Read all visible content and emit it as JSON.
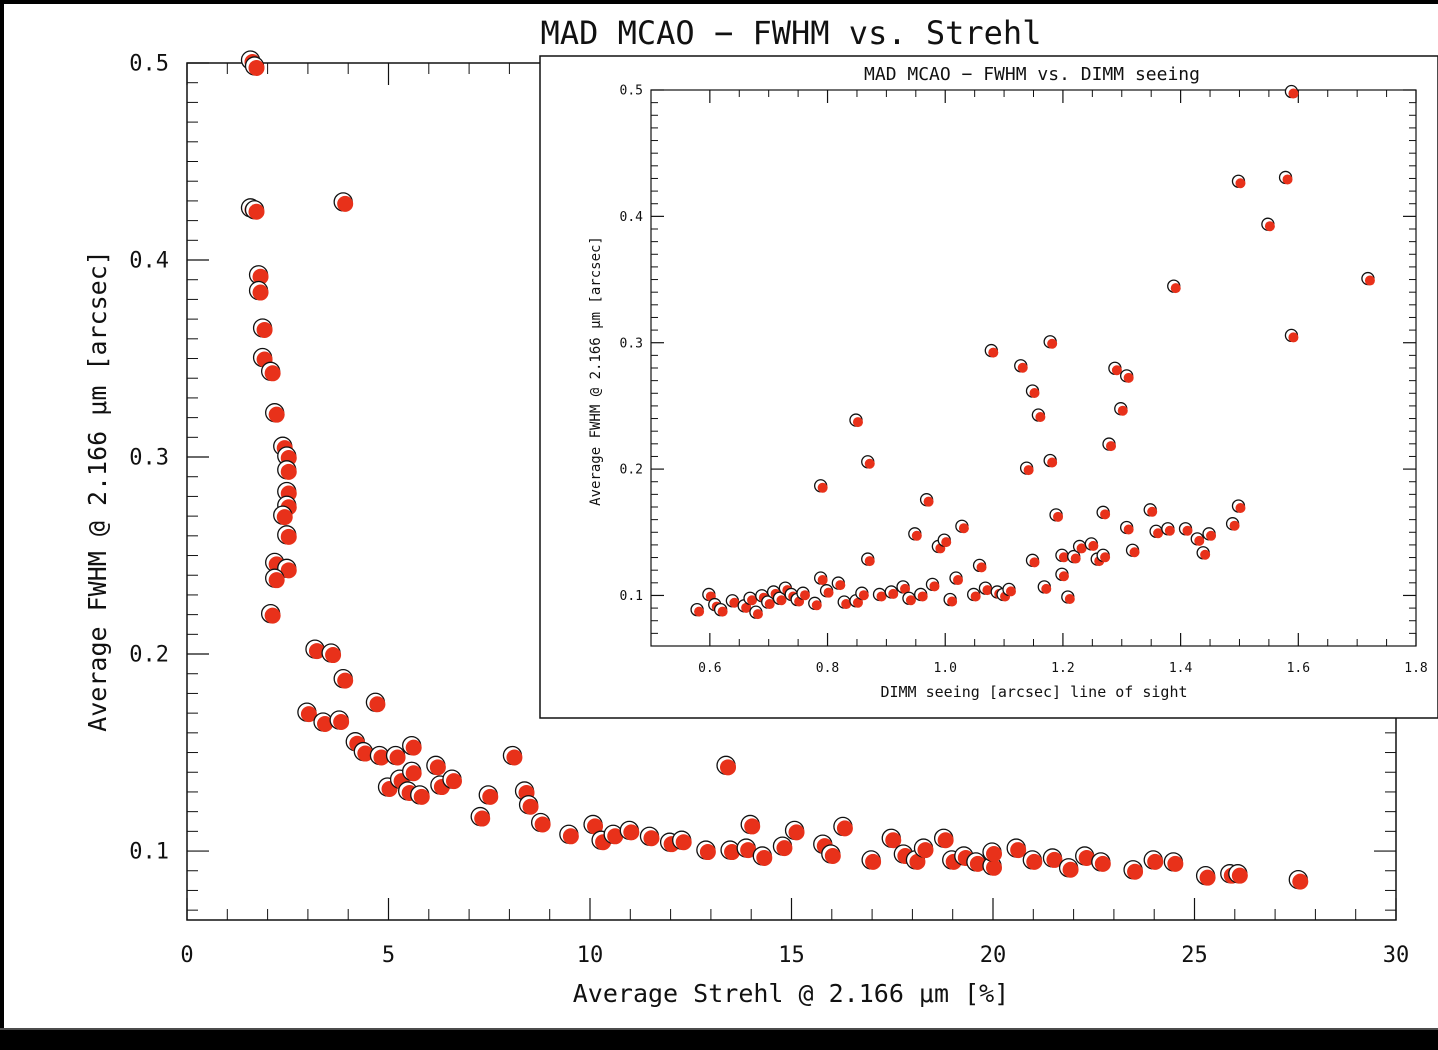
{
  "chart_data": [
    {
      "type": "scatter",
      "title": "MAD MCAO − FWHM vs. Strehl",
      "xlabel": "Average Strehl @ 2.166 μm [%]",
      "ylabel": "Average FWHM @ 2.166 μm [arcsec]",
      "xlim": [
        0,
        30
      ],
      "ylim": [
        0.065,
        0.5
      ],
      "xticks": [
        "0",
        "5",
        "10",
        "15",
        "20",
        "25",
        "30"
      ],
      "yticks": [
        "0.1",
        "0.2",
        "0.3",
        "0.4",
        "0.5"
      ],
      "grid": false,
      "marker_color": "#e8311a",
      "points": [
        [
          1.6,
          0.501
        ],
        [
          1.7,
          0.498
        ],
        [
          1.6,
          0.426
        ],
        [
          1.7,
          0.425
        ],
        [
          3.9,
          0.429
        ],
        [
          1.8,
          0.392
        ],
        [
          1.8,
          0.384
        ],
        [
          1.9,
          0.365
        ],
        [
          1.9,
          0.35
        ],
        [
          2.1,
          0.343
        ],
        [
          2.2,
          0.322
        ],
        [
          2.4,
          0.305
        ],
        [
          2.5,
          0.3
        ],
        [
          2.5,
          0.293
        ],
        [
          2.5,
          0.282
        ],
        [
          2.5,
          0.275
        ],
        [
          2.4,
          0.27
        ],
        [
          2.5,
          0.26
        ],
        [
          2.2,
          0.246
        ],
        [
          2.5,
          0.243
        ],
        [
          2.2,
          0.238
        ],
        [
          2.1,
          0.22
        ],
        [
          3.2,
          0.202
        ],
        [
          3.6,
          0.2
        ],
        [
          3.9,
          0.187
        ],
        [
          3.0,
          0.17
        ],
        [
          3.4,
          0.165
        ],
        [
          3.8,
          0.166
        ],
        [
          4.2,
          0.155
        ],
        [
          4.4,
          0.15
        ],
        [
          4.7,
          0.175
        ],
        [
          4.8,
          0.148
        ],
        [
          5.2,
          0.148
        ],
        [
          5.0,
          0.132
        ],
        [
          5.3,
          0.136
        ],
        [
          5.6,
          0.14
        ],
        [
          5.6,
          0.153
        ],
        [
          5.5,
          0.13
        ],
        [
          5.8,
          0.128
        ],
        [
          6.2,
          0.143
        ],
        [
          6.3,
          0.133
        ],
        [
          6.6,
          0.136
        ],
        [
          7.3,
          0.117
        ],
        [
          7.5,
          0.128
        ],
        [
          8.1,
          0.148
        ],
        [
          8.4,
          0.13
        ],
        [
          8.5,
          0.123
        ],
        [
          8.8,
          0.114
        ],
        [
          9.5,
          0.108
        ],
        [
          10.1,
          0.113
        ],
        [
          10.3,
          0.105
        ],
        [
          10.6,
          0.108
        ],
        [
          11.0,
          0.11
        ],
        [
          11.5,
          0.107
        ],
        [
          12.0,
          0.104
        ],
        [
          12.3,
          0.105
        ],
        [
          12.9,
          0.1
        ],
        [
          13.4,
          0.143
        ],
        [
          13.5,
          0.1
        ],
        [
          13.9,
          0.101
        ],
        [
          14.0,
          0.113
        ],
        [
          14.3,
          0.097
        ],
        [
          14.8,
          0.102
        ],
        [
          15.1,
          0.11
        ],
        [
          15.8,
          0.103
        ],
        [
          16.0,
          0.098
        ],
        [
          16.3,
          0.112
        ],
        [
          17.0,
          0.095
        ],
        [
          17.5,
          0.106
        ],
        [
          17.8,
          0.098
        ],
        [
          18.1,
          0.095
        ],
        [
          18.3,
          0.101
        ],
        [
          18.8,
          0.106
        ],
        [
          19.0,
          0.095
        ],
        [
          19.3,
          0.097
        ],
        [
          19.6,
          0.094
        ],
        [
          20.0,
          0.092
        ],
        [
          20.0,
          0.099
        ],
        [
          20.6,
          0.101
        ],
        [
          21.0,
          0.095
        ],
        [
          21.5,
          0.096
        ],
        [
          21.9,
          0.091
        ],
        [
          22.3,
          0.097
        ],
        [
          22.7,
          0.094
        ],
        [
          23.5,
          0.09
        ],
        [
          24.0,
          0.095
        ],
        [
          24.5,
          0.094
        ],
        [
          25.3,
          0.087
        ],
        [
          25.9,
          0.088
        ],
        [
          26.1,
          0.088
        ],
        [
          27.6,
          0.085
        ]
      ]
    },
    {
      "type": "scatter",
      "title": "MAD MCAO − FWHM vs. DIMM seeing",
      "xlabel": "DIMM seeing [arcsec] line of sight",
      "ylabel": "Average FWHM @ 2.166 μm [arcsec]",
      "xlim": [
        0.5,
        1.8
      ],
      "ylim": [
        0.06,
        0.5
      ],
      "xticks": [
        "0.6",
        "0.8",
        "1.0",
        "1.2",
        "1.4",
        "1.6",
        "1.8"
      ],
      "yticks": [
        "0.1",
        "0.2",
        "0.3",
        "0.4",
        "0.5"
      ],
      "grid": false,
      "marker_color": "#e8311a",
      "points": [
        [
          0.58,
          0.088
        ],
        [
          0.6,
          0.1
        ],
        [
          0.61,
          0.092
        ],
        [
          0.62,
          0.088
        ],
        [
          0.64,
          0.095
        ],
        [
          0.66,
          0.091
        ],
        [
          0.67,
          0.097
        ],
        [
          0.68,
          0.086
        ],
        [
          0.69,
          0.099
        ],
        [
          0.7,
          0.094
        ],
        [
          0.71,
          0.102
        ],
        [
          0.72,
          0.097
        ],
        [
          0.73,
          0.105
        ],
        [
          0.74,
          0.1
        ],
        [
          0.75,
          0.096
        ],
        [
          0.76,
          0.101
        ],
        [
          0.78,
          0.093
        ],
        [
          0.79,
          0.113
        ],
        [
          0.79,
          0.186
        ],
        [
          0.8,
          0.103
        ],
        [
          0.82,
          0.109
        ],
        [
          0.83,
          0.094
        ],
        [
          0.85,
          0.238
        ],
        [
          0.85,
          0.095
        ],
        [
          0.86,
          0.101
        ],
        [
          0.87,
          0.128
        ],
        [
          0.87,
          0.205
        ],
        [
          0.89,
          0.1
        ],
        [
          0.91,
          0.102
        ],
        [
          0.93,
          0.106
        ],
        [
          0.94,
          0.097
        ],
        [
          0.95,
          0.148
        ],
        [
          0.96,
          0.1
        ],
        [
          0.97,
          0.175
        ],
        [
          0.98,
          0.108
        ],
        [
          0.99,
          0.138
        ],
        [
          1.0,
          0.143
        ],
        [
          1.01,
          0.096
        ],
        [
          1.02,
          0.113
        ],
        [
          1.03,
          0.154
        ],
        [
          1.05,
          0.1
        ],
        [
          1.06,
          0.123
        ],
        [
          1.07,
          0.105
        ],
        [
          1.08,
          0.293
        ],
        [
          1.09,
          0.102
        ],
        [
          1.1,
          0.1
        ],
        [
          1.11,
          0.104
        ],
        [
          1.13,
          0.281
        ],
        [
          1.14,
          0.2
        ],
        [
          1.15,
          0.261
        ],
        [
          1.15,
          0.127
        ],
        [
          1.16,
          0.242
        ],
        [
          1.17,
          0.106
        ],
        [
          1.18,
          0.3
        ],
        [
          1.18,
          0.206
        ],
        [
          1.19,
          0.163
        ],
        [
          1.2,
          0.131
        ],
        [
          1.2,
          0.116
        ],
        [
          1.21,
          0.098
        ],
        [
          1.22,
          0.13
        ],
        [
          1.23,
          0.138
        ],
        [
          1.25,
          0.14
        ],
        [
          1.26,
          0.128
        ],
        [
          1.27,
          0.165
        ],
        [
          1.27,
          0.131
        ],
        [
          1.28,
          0.219
        ],
        [
          1.29,
          0.279
        ],
        [
          1.3,
          0.247
        ],
        [
          1.31,
          0.273
        ],
        [
          1.31,
          0.153
        ],
        [
          1.32,
          0.135
        ],
        [
          1.35,
          0.167
        ],
        [
          1.36,
          0.15
        ],
        [
          1.38,
          0.152
        ],
        [
          1.39,
          0.344
        ],
        [
          1.41,
          0.152
        ],
        [
          1.43,
          0.144
        ],
        [
          1.44,
          0.133
        ],
        [
          1.45,
          0.148
        ],
        [
          1.49,
          0.156
        ],
        [
          1.5,
          0.17
        ],
        [
          1.5,
          0.427
        ],
        [
          1.55,
          0.393
        ],
        [
          1.58,
          0.43
        ],
        [
          1.59,
          0.498
        ],
        [
          1.59,
          0.305
        ],
        [
          1.72,
          0.35
        ]
      ]
    }
  ]
}
